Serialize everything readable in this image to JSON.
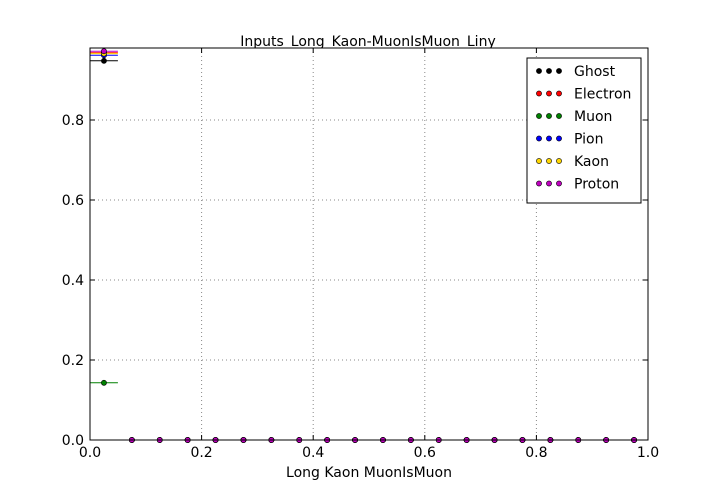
{
  "chart_data": {
    "type": "scatter",
    "title": "Inputs_Long_Kaon-MuonIsMuon_Liny",
    "xlabel": "Long Kaon MuonIsMuon",
    "ylabel": "",
    "xlim": [
      0.0,
      1.0
    ],
    "ylim": [
      0.0,
      0.98
    ],
    "xticks": [
      "0.0",
      "0.2",
      "0.4",
      "0.6",
      "0.8",
      "1.0"
    ],
    "yticks": [
      "0.0",
      "0.2",
      "0.4",
      "0.6",
      "0.8"
    ],
    "grid": true,
    "legend_position": "top-right",
    "bin_width": 0.05,
    "x": [
      0.025,
      0.075,
      0.125,
      0.175,
      0.225,
      0.275,
      0.325,
      0.375,
      0.425,
      0.475,
      0.525,
      0.575,
      0.625,
      0.675,
      0.725,
      0.775,
      0.825,
      0.875,
      0.925,
      0.975
    ],
    "series": [
      {
        "name": "Ghost",
        "color": "#000000",
        "values": [
          0.948,
          0,
          0,
          0,
          0,
          0,
          0,
          0,
          0,
          0,
          0,
          0,
          0,
          0,
          0,
          0,
          0,
          0,
          0,
          0
        ]
      },
      {
        "name": "Electron",
        "color": "#ff0000",
        "values": [
          0.968,
          0,
          0,
          0,
          0,
          0,
          0,
          0,
          0,
          0,
          0,
          0,
          0,
          0,
          0,
          0,
          0,
          0,
          0,
          0
        ]
      },
      {
        "name": "Muon",
        "color": "#008000",
        "values": [
          0.143,
          0,
          0,
          0,
          0,
          0,
          0,
          0,
          0,
          0,
          0,
          0,
          0,
          0,
          0,
          0,
          0,
          0,
          0,
          0
        ]
      },
      {
        "name": "Pion",
        "color": "#0000ff",
        "values": [
          0.962,
          0,
          0,
          0,
          0,
          0,
          0,
          0,
          0,
          0,
          0,
          0,
          0,
          0,
          0,
          0,
          0,
          0,
          0,
          0
        ]
      },
      {
        "name": "Kaon",
        "color": "#ffd700",
        "values": [
          0.966,
          0,
          0,
          0,
          0,
          0,
          0,
          0,
          0,
          0,
          0,
          0,
          0,
          0,
          0,
          0,
          0,
          0,
          0,
          0
        ]
      },
      {
        "name": "Proton",
        "color": "#bf00bf",
        "values": [
          0.972,
          0,
          0,
          0,
          0,
          0,
          0,
          0,
          0,
          0,
          0,
          0,
          0,
          0,
          0,
          0,
          0,
          0,
          0,
          0
        ]
      }
    ]
  }
}
